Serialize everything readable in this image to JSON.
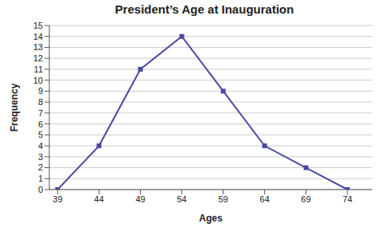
{
  "chart_data": {
    "type": "line",
    "title": "President’s Age at Inauguration",
    "x_label": "Ages",
    "y_label": "Frequency",
    "x": [
      39,
      44,
      49,
      54,
      59,
      64,
      69,
      74
    ],
    "values": [
      0,
      4,
      11,
      14,
      9,
      4,
      2,
      0
    ],
    "color": "#4a4aa0",
    "marker": "square",
    "xlim": [
      38,
      77
    ],
    "xticks": [
      39,
      44,
      49,
      54,
      59,
      64,
      69,
      74
    ],
    "ylim": [
      0,
      15
    ],
    "yticks": [
      0,
      1,
      2,
      3,
      4,
      5,
      6,
      7,
      8,
      9,
      10,
      11,
      12,
      13,
      14,
      15
    ],
    "grid": true
  }
}
